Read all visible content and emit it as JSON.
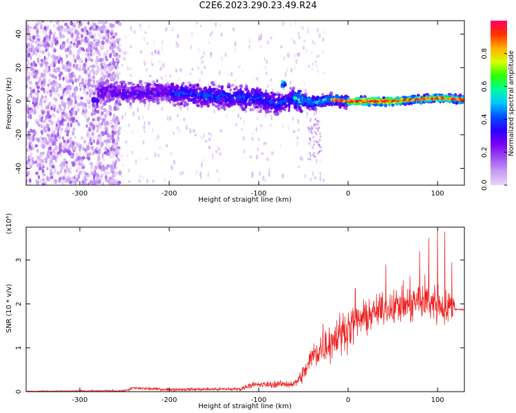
{
  "title": "C2E6.2023.290.23.49.R24",
  "chart_data": [
    {
      "type": "heatmap",
      "xlabel": "Height of straight line (km)",
      "ylabel": "Frequency (Hz)",
      "xlim": [
        -360,
        130
      ],
      "ylim": [
        -50,
        48
      ],
      "xticks": [
        -300,
        -200,
        -100,
        0,
        100
      ],
      "yticks": [
        -40,
        -20,
        0,
        20,
        40
      ],
      "colorbar": {
        "label": "Normalized spectral amplitude",
        "range": [
          0,
          1
        ],
        "ticks": [
          "0.0",
          "0.2",
          "0.4",
          "0.6",
          "0.8"
        ],
        "tick_values": [
          0.0,
          0.2,
          0.4,
          0.6,
          0.8
        ],
        "colormap": [
          "#ffffff",
          "#e8d4f8",
          "#c79cf2",
          "#9b4ff0",
          "#7a00ee",
          "#2a00ff",
          "#0050ff",
          "#00c8ff",
          "#00ff9a",
          "#30ff00",
          "#d8ff00",
          "#ffb000",
          "#ff3000",
          "#ff0066"
        ]
      },
      "ridge": [
        {
          "x": -280,
          "f": 6
        },
        {
          "x": -250,
          "f": 5
        },
        {
          "x": -200,
          "f": 5
        },
        {
          "x": -150,
          "f": 3
        },
        {
          "x": -100,
          "f": 2
        },
        {
          "x": -80,
          "f": -2
        },
        {
          "x": -60,
          "f": 2
        },
        {
          "x": -40,
          "f": -1
        },
        {
          "x": -20,
          "f": 1
        },
        {
          "x": 0,
          "f": 0
        },
        {
          "x": 50,
          "f": 0
        },
        {
          "x": 100,
          "f": 2
        },
        {
          "x": 130,
          "f": 1
        }
      ]
    },
    {
      "type": "line",
      "xlabel": "Height of straight line (km)",
      "ylabel": "SNR (10 * v/v)",
      "scale_label": "(x10⁴)",
      "xlim": [
        -360,
        130
      ],
      "ylim": [
        0,
        3.75
      ],
      "xticks": [
        -300,
        -200,
        -100,
        0,
        100
      ],
      "yticks": [
        0,
        1,
        2,
        3
      ],
      "line_color": "#ee2222",
      "envelope": [
        {
          "x": -360,
          "y": 0.01,
          "spread": 0.01
        },
        {
          "x": -250,
          "y": 0.02,
          "spread": 0.03
        },
        {
          "x": -240,
          "y": 0.08,
          "spread": 0.06
        },
        {
          "x": -200,
          "y": 0.05,
          "spread": 0.05
        },
        {
          "x": -120,
          "y": 0.06,
          "spread": 0.06
        },
        {
          "x": -110,
          "y": 0.15,
          "spread": 0.1
        },
        {
          "x": -60,
          "y": 0.18,
          "spread": 0.12
        },
        {
          "x": -50,
          "y": 0.4,
          "spread": 0.3
        },
        {
          "x": -40,
          "y": 0.8,
          "spread": 0.5
        },
        {
          "x": -30,
          "y": 1.0,
          "spread": 0.6
        },
        {
          "x": -10,
          "y": 1.3,
          "spread": 0.7
        },
        {
          "x": 10,
          "y": 1.6,
          "spread": 0.6
        },
        {
          "x": 40,
          "y": 1.9,
          "spread": 0.5
        },
        {
          "x": 70,
          "y": 2.0,
          "spread": 0.7
        },
        {
          "x": 90,
          "y": 2.1,
          "spread": 0.8
        },
        {
          "x": 110,
          "y": 1.9,
          "spread": 0.6
        },
        {
          "x": 118,
          "y": 1.95,
          "spread": 0.5
        },
        {
          "x": 120,
          "y": 1.88,
          "spread": 0.03
        },
        {
          "x": 130,
          "y": 1.87,
          "spread": 0.02
        }
      ],
      "peaks": [
        {
          "x": -28,
          "y": 1.55
        },
        {
          "x": 8,
          "y": 2.35
        },
        {
          "x": 42,
          "y": 2.9
        },
        {
          "x": 80,
          "y": 3.2
        },
        {
          "x": 100,
          "y": 3.75
        },
        {
          "x": 108,
          "y": 3.65
        },
        {
          "x": 90,
          "y": 3.5
        },
        {
          "x": 116,
          "y": 2.95
        }
      ]
    }
  ]
}
